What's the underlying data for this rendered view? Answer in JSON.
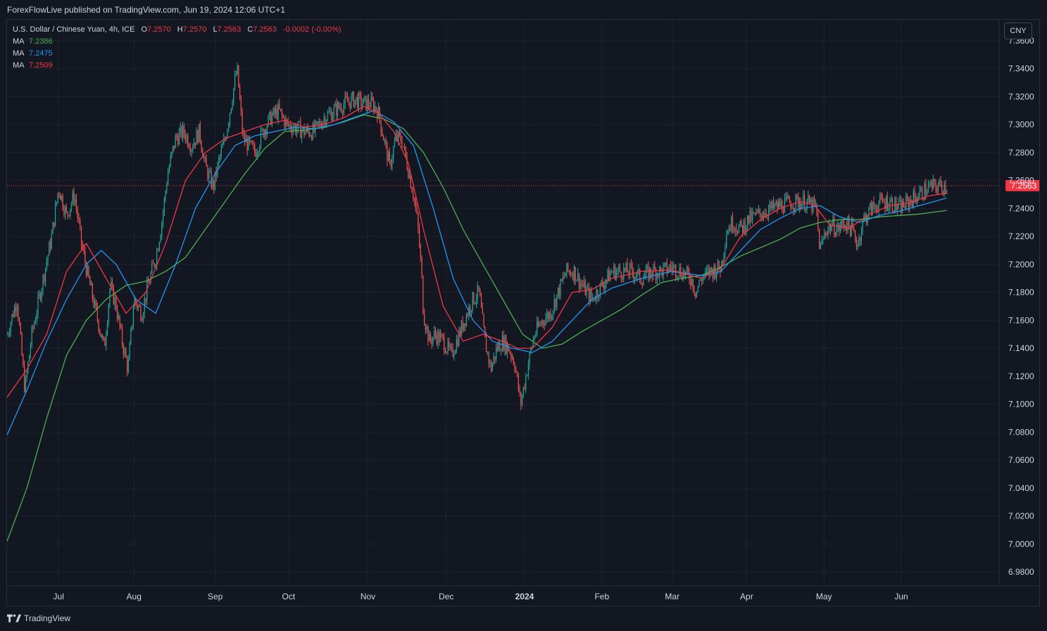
{
  "header": {
    "publisher_text": "ForexFlowLive published on TradingView.com, Jun 19, 2024 12:06 UTC+1"
  },
  "legend": {
    "symbol": "U.S. Dollar / Chinese Yuan, 4h, ICE",
    "open_label": "O",
    "open": "7.2570",
    "high_label": "H",
    "high": "7.2570",
    "low_label": "L",
    "low": "7.2563",
    "close_label": "C",
    "close": "7.2563",
    "change": "-0.0002 (-0.00%)",
    "ma": [
      {
        "label": "MA",
        "value": "7.2386",
        "color": "#4caf50"
      },
      {
        "label": "MA",
        "value": "7.2475",
        "color": "#2196f3"
      },
      {
        "label": "MA",
        "value": "7.2509",
        "color": "#f23645"
      }
    ]
  },
  "currency_button": "CNY",
  "footer": {
    "brand": "TradingView"
  },
  "chart_data": {
    "type": "candlestick",
    "ylim": [
      6.97,
      7.375
    ],
    "y_ticks": [
      "7.3600",
      "7.3400",
      "7.3200",
      "7.3000",
      "7.2800",
      "7.2600",
      "7.2400",
      "7.2200",
      "7.2000",
      "7.1800",
      "7.1600",
      "7.1400",
      "7.1200",
      "7.1000",
      "7.0800",
      "7.0600",
      "7.0400",
      "7.0200",
      "7.0000",
      "6.9800"
    ],
    "x_ticks": [
      {
        "label": "Jul",
        "t": 0.052
      },
      {
        "label": "Aug",
        "t": 0.128
      },
      {
        "label": "Sep",
        "t": 0.21
      },
      {
        "label": "Oct",
        "t": 0.284
      },
      {
        "label": "Nov",
        "t": 0.364
      },
      {
        "label": "Dec",
        "t": 0.443
      },
      {
        "label": "2024",
        "t": 0.522,
        "bold": true
      },
      {
        "label": "Feb",
        "t": 0.6
      },
      {
        "label": "Mar",
        "t": 0.671
      },
      {
        "label": "Apr",
        "t": 0.746
      },
      {
        "label": "May",
        "t": 0.824
      },
      {
        "label": "Jun",
        "t": 0.902
      }
    ],
    "last_price": 7.2563,
    "last_price_label": "7.2563",
    "colors": {
      "up": "#26a69a",
      "down": "#ef5350",
      "ma_fast": "#f23645",
      "ma_mid": "#2196f3",
      "ma_slow": "#4caf50",
      "grid": "#1e222d"
    },
    "close_path": [
      [
        0.0,
        7.15
      ],
      [
        0.01,
        7.175
      ],
      [
        0.018,
        7.11
      ],
      [
        0.025,
        7.15
      ],
      [
        0.035,
        7.185
      ],
      [
        0.045,
        7.22
      ],
      [
        0.052,
        7.255
      ],
      [
        0.06,
        7.235
      ],
      [
        0.068,
        7.25
      ],
      [
        0.075,
        7.215
      ],
      [
        0.082,
        7.19
      ],
      [
        0.09,
        7.165
      ],
      [
        0.098,
        7.14
      ],
      [
        0.104,
        7.185
      ],
      [
        0.11,
        7.17
      ],
      [
        0.116,
        7.145
      ],
      [
        0.122,
        7.125
      ],
      [
        0.128,
        7.175
      ],
      [
        0.136,
        7.165
      ],
      [
        0.142,
        7.185
      ],
      [
        0.15,
        7.205
      ],
      [
        0.156,
        7.23
      ],
      [
        0.162,
        7.265
      ],
      [
        0.17,
        7.29
      ],
      [
        0.178,
        7.295
      ],
      [
        0.186,
        7.285
      ],
      [
        0.194,
        7.295
      ],
      [
        0.2,
        7.27
      ],
      [
        0.208,
        7.255
      ],
      [
        0.214,
        7.275
      ],
      [
        0.22,
        7.29
      ],
      [
        0.226,
        7.315
      ],
      [
        0.232,
        7.34
      ],
      [
        0.238,
        7.29
      ],
      [
        0.244,
        7.285
      ],
      [
        0.25,
        7.28
      ],
      [
        0.258,
        7.295
      ],
      [
        0.266,
        7.305
      ],
      [
        0.274,
        7.31
      ],
      [
        0.282,
        7.3
      ],
      [
        0.29,
        7.298
      ],
      [
        0.3,
        7.295
      ],
      [
        0.31,
        7.295
      ],
      [
        0.32,
        7.305
      ],
      [
        0.33,
        7.31
      ],
      [
        0.34,
        7.315
      ],
      [
        0.35,
        7.318
      ],
      [
        0.36,
        7.315
      ],
      [
        0.368,
        7.315
      ],
      [
        0.374,
        7.31
      ],
      [
        0.38,
        7.29
      ],
      [
        0.386,
        7.27
      ],
      [
        0.392,
        7.29
      ],
      [
        0.398,
        7.29
      ],
      [
        0.404,
        7.27
      ],
      [
        0.41,
        7.25
      ],
      [
        0.414,
        7.23
      ],
      [
        0.418,
        7.195
      ],
      [
        0.42,
        7.165
      ],
      [
        0.426,
        7.145
      ],
      [
        0.432,
        7.15
      ],
      [
        0.44,
        7.145
      ],
      [
        0.448,
        7.135
      ],
      [
        0.456,
        7.15
      ],
      [
        0.464,
        7.165
      ],
      [
        0.47,
        7.175
      ],
      [
        0.476,
        7.18
      ],
      [
        0.482,
        7.145
      ],
      [
        0.488,
        7.125
      ],
      [
        0.494,
        7.14
      ],
      [
        0.5,
        7.145
      ],
      [
        0.506,
        7.14
      ],
      [
        0.512,
        7.13
      ],
      [
        0.518,
        7.1
      ],
      [
        0.522,
        7.115
      ],
      [
        0.526,
        7.13
      ],
      [
        0.532,
        7.15
      ],
      [
        0.54,
        7.16
      ],
      [
        0.548,
        7.165
      ],
      [
        0.556,
        7.18
      ],
      [
        0.564,
        7.195
      ],
      [
        0.572,
        7.195
      ],
      [
        0.58,
        7.185
      ],
      [
        0.59,
        7.175
      ],
      [
        0.6,
        7.185
      ],
      [
        0.61,
        7.195
      ],
      [
        0.62,
        7.195
      ],
      [
        0.63,
        7.195
      ],
      [
        0.64,
        7.19
      ],
      [
        0.65,
        7.195
      ],
      [
        0.66,
        7.195
      ],
      [
        0.67,
        7.198
      ],
      [
        0.68,
        7.195
      ],
      [
        0.69,
        7.19
      ],
      [
        0.695,
        7.18
      ],
      [
        0.7,
        7.19
      ],
      [
        0.71,
        7.195
      ],
      [
        0.72,
        7.198
      ],
      [
        0.726,
        7.225
      ],
      [
        0.732,
        7.23
      ],
      [
        0.74,
        7.225
      ],
      [
        0.748,
        7.232
      ],
      [
        0.756,
        7.235
      ],
      [
        0.764,
        7.238
      ],
      [
        0.772,
        7.24
      ],
      [
        0.78,
        7.242
      ],
      [
        0.79,
        7.244
      ],
      [
        0.8,
        7.245
      ],
      [
        0.808,
        7.244
      ],
      [
        0.816,
        7.24
      ],
      [
        0.82,
        7.21
      ],
      [
        0.826,
        7.225
      ],
      [
        0.832,
        7.228
      ],
      [
        0.838,
        7.225
      ],
      [
        0.846,
        7.23
      ],
      [
        0.852,
        7.225
      ],
      [
        0.858,
        7.215
      ],
      [
        0.864,
        7.232
      ],
      [
        0.872,
        7.24
      ],
      [
        0.88,
        7.244
      ],
      [
        0.89,
        7.245
      ],
      [
        0.9,
        7.24
      ],
      [
        0.91,
        7.245
      ],
      [
        0.92,
        7.25
      ],
      [
        0.93,
        7.255
      ],
      [
        0.94,
        7.256
      ],
      [
        0.948,
        7.2563
      ]
    ],
    "ma_fast_path": [
      [
        0.0,
        7.105
      ],
      [
        0.02,
        7.125
      ],
      [
        0.04,
        7.15
      ],
      [
        0.06,
        7.195
      ],
      [
        0.08,
        7.215
      ],
      [
        0.1,
        7.19
      ],
      [
        0.12,
        7.165
      ],
      [
        0.14,
        7.18
      ],
      [
        0.16,
        7.215
      ],
      [
        0.18,
        7.26
      ],
      [
        0.2,
        7.28
      ],
      [
        0.22,
        7.29
      ],
      [
        0.24,
        7.295
      ],
      [
        0.26,
        7.3
      ],
      [
        0.28,
        7.303
      ],
      [
        0.3,
        7.298
      ],
      [
        0.32,
        7.3
      ],
      [
        0.34,
        7.305
      ],
      [
        0.36,
        7.313
      ],
      [
        0.375,
        7.308
      ],
      [
        0.39,
        7.295
      ],
      [
        0.405,
        7.272
      ],
      [
        0.42,
        7.225
      ],
      [
        0.44,
        7.17
      ],
      [
        0.46,
        7.145
      ],
      [
        0.48,
        7.15
      ],
      [
        0.5,
        7.145
      ],
      [
        0.515,
        7.14
      ],
      [
        0.53,
        7.14
      ],
      [
        0.55,
        7.155
      ],
      [
        0.57,
        7.18
      ],
      [
        0.59,
        7.182
      ],
      [
        0.61,
        7.19
      ],
      [
        0.64,
        7.195
      ],
      [
        0.67,
        7.196
      ],
      [
        0.7,
        7.19
      ],
      [
        0.72,
        7.197
      ],
      [
        0.74,
        7.22
      ],
      [
        0.76,
        7.232
      ],
      [
        0.78,
        7.24
      ],
      [
        0.8,
        7.245
      ],
      [
        0.815,
        7.242
      ],
      [
        0.83,
        7.228
      ],
      [
        0.85,
        7.226
      ],
      [
        0.87,
        7.236
      ],
      [
        0.89,
        7.242
      ],
      [
        0.91,
        7.244
      ],
      [
        0.93,
        7.249
      ],
      [
        0.948,
        7.2509
      ]
    ],
    "ma_mid_path": [
      [
        0.0,
        7.078
      ],
      [
        0.02,
        7.11
      ],
      [
        0.04,
        7.145
      ],
      [
        0.06,
        7.175
      ],
      [
        0.08,
        7.2
      ],
      [
        0.095,
        7.21
      ],
      [
        0.11,
        7.2
      ],
      [
        0.13,
        7.175
      ],
      [
        0.15,
        7.165
      ],
      [
        0.17,
        7.2
      ],
      [
        0.19,
        7.24
      ],
      [
        0.21,
        7.265
      ],
      [
        0.23,
        7.285
      ],
      [
        0.25,
        7.292
      ],
      [
        0.27,
        7.295
      ],
      [
        0.29,
        7.298
      ],
      [
        0.31,
        7.297
      ],
      [
        0.33,
        7.3
      ],
      [
        0.35,
        7.305
      ],
      [
        0.37,
        7.31
      ],
      [
        0.39,
        7.302
      ],
      [
        0.41,
        7.285
      ],
      [
        0.43,
        7.24
      ],
      [
        0.45,
        7.19
      ],
      [
        0.47,
        7.16
      ],
      [
        0.49,
        7.145
      ],
      [
        0.51,
        7.14
      ],
      [
        0.53,
        7.137
      ],
      [
        0.55,
        7.145
      ],
      [
        0.57,
        7.16
      ],
      [
        0.59,
        7.175
      ],
      [
        0.61,
        7.183
      ],
      [
        0.64,
        7.19
      ],
      [
        0.67,
        7.195
      ],
      [
        0.7,
        7.192
      ],
      [
        0.72,
        7.195
      ],
      [
        0.74,
        7.21
      ],
      [
        0.76,
        7.225
      ],
      [
        0.78,
        7.233
      ],
      [
        0.8,
        7.24
      ],
      [
        0.82,
        7.242
      ],
      [
        0.84,
        7.234
      ],
      [
        0.86,
        7.23
      ],
      [
        0.88,
        7.235
      ],
      [
        0.9,
        7.238
      ],
      [
        0.92,
        7.242
      ],
      [
        0.948,
        7.2475
      ]
    ],
    "ma_slow_path": [
      [
        0.0,
        7.002
      ],
      [
        0.02,
        7.04
      ],
      [
        0.04,
        7.09
      ],
      [
        0.06,
        7.135
      ],
      [
        0.08,
        7.16
      ],
      [
        0.1,
        7.175
      ],
      [
        0.12,
        7.185
      ],
      [
        0.14,
        7.188
      ],
      [
        0.16,
        7.195
      ],
      [
        0.18,
        7.205
      ],
      [
        0.2,
        7.225
      ],
      [
        0.22,
        7.245
      ],
      [
        0.24,
        7.265
      ],
      [
        0.26,
        7.283
      ],
      [
        0.28,
        7.295
      ],
      [
        0.3,
        7.296
      ],
      [
        0.32,
        7.298
      ],
      [
        0.34,
        7.302
      ],
      [
        0.36,
        7.307
      ],
      [
        0.38,
        7.304
      ],
      [
        0.4,
        7.297
      ],
      [
        0.42,
        7.28
      ],
      [
        0.44,
        7.255
      ],
      [
        0.46,
        7.225
      ],
      [
        0.48,
        7.2
      ],
      [
        0.5,
        7.175
      ],
      [
        0.52,
        7.15
      ],
      [
        0.54,
        7.14
      ],
      [
        0.56,
        7.143
      ],
      [
        0.58,
        7.152
      ],
      [
        0.6,
        7.16
      ],
      [
        0.62,
        7.168
      ],
      [
        0.64,
        7.178
      ],
      [
        0.66,
        7.187
      ],
      [
        0.68,
        7.19
      ],
      [
        0.7,
        7.192
      ],
      [
        0.72,
        7.198
      ],
      [
        0.74,
        7.206
      ],
      [
        0.76,
        7.212
      ],
      [
        0.78,
        7.218
      ],
      [
        0.8,
        7.226
      ],
      [
        0.82,
        7.23
      ],
      [
        0.84,
        7.232
      ],
      [
        0.86,
        7.232
      ],
      [
        0.88,
        7.234
      ],
      [
        0.9,
        7.235
      ],
      [
        0.92,
        7.236
      ],
      [
        0.948,
        7.2386
      ]
    ]
  }
}
